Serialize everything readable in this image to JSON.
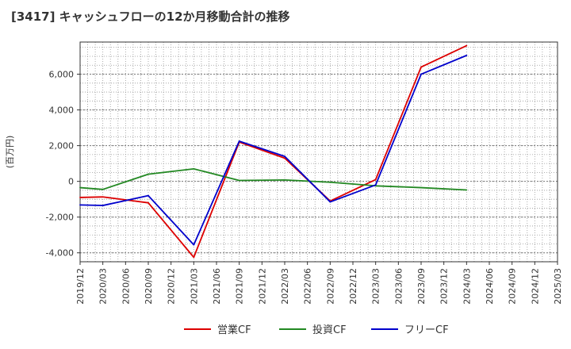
{
  "chart_data": {
    "type": "line",
    "title": "[3417]  キャッシュフローの12か月移動合計の推移",
    "ylabel": "(百万円)",
    "xlabel": "",
    "ylim": [
      -4500,
      7800
    ],
    "yticks": [
      -4000,
      -2000,
      0,
      2000,
      4000,
      6000
    ],
    "ytick_labels": [
      "-4,000",
      "-2,000",
      "0",
      "2,000",
      "4,000",
      "6,000"
    ],
    "x_dates": [
      "2019/12",
      "2020/03",
      "2020/06",
      "2020/09",
      "2020/12",
      "2021/03",
      "2021/06",
      "2021/09",
      "2021/12",
      "2022/03",
      "2022/06",
      "2022/09",
      "2022/12",
      "2023/03",
      "2023/06",
      "2023/09",
      "2023/12",
      "2024/03",
      "2024/06",
      "2024/09",
      "2024/12",
      "2025/03"
    ],
    "grid": true,
    "legend_position": "bottom",
    "series": [
      {
        "name": "営業CF",
        "color": "#dd0000",
        "points": [
          {
            "x": "2019/12",
            "y": -900
          },
          {
            "x": "2020/03",
            "y": -870
          },
          {
            "x": "2020/09",
            "y": -1200
          },
          {
            "x": "2021/03",
            "y": -4250
          },
          {
            "x": "2021/09",
            "y": 2200
          },
          {
            "x": "2022/03",
            "y": 1300
          },
          {
            "x": "2022/09",
            "y": -1100
          },
          {
            "x": "2023/03",
            "y": 100
          },
          {
            "x": "2023/09",
            "y": 6400
          },
          {
            "x": "2024/03",
            "y": 7600
          }
        ]
      },
      {
        "name": "投資CF",
        "color": "#228822",
        "points": [
          {
            "x": "2019/12",
            "y": -350
          },
          {
            "x": "2020/03",
            "y": -450
          },
          {
            "x": "2020/09",
            "y": 400
          },
          {
            "x": "2021/03",
            "y": 700
          },
          {
            "x": "2021/09",
            "y": 50
          },
          {
            "x": "2022/03",
            "y": 80
          },
          {
            "x": "2022/09",
            "y": -50
          },
          {
            "x": "2023/03",
            "y": -250
          },
          {
            "x": "2023/09",
            "y": -350
          },
          {
            "x": "2024/03",
            "y": -480
          }
        ]
      },
      {
        "name": "フリーCF",
        "color": "#0000cc",
        "points": [
          {
            "x": "2019/12",
            "y": -1320
          },
          {
            "x": "2020/03",
            "y": -1350
          },
          {
            "x": "2020/09",
            "y": -800
          },
          {
            "x": "2021/03",
            "y": -3550
          },
          {
            "x": "2021/09",
            "y": 2250
          },
          {
            "x": "2022/03",
            "y": 1400
          },
          {
            "x": "2022/09",
            "y": -1150
          },
          {
            "x": "2023/03",
            "y": -200
          },
          {
            "x": "2023/09",
            "y": 6000
          },
          {
            "x": "2024/03",
            "y": 7050
          }
        ]
      }
    ]
  }
}
